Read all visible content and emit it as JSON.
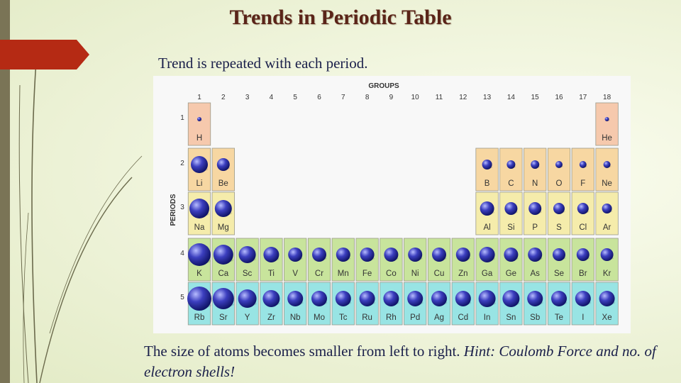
{
  "slide": {
    "title": "Trends in Periodic Table",
    "subtitle": "Trend is repeated with each period.",
    "caption_plain": "The size of atoms becomes smaller from left to right. ",
    "caption_italic": "Hint: Coulomb Force and no. of electron shells!"
  },
  "diagram": {
    "groups_label": "GROUPS",
    "periods_label": "PERIODS",
    "group_numbers": [
      "1",
      "2",
      "3",
      "4",
      "5",
      "6",
      "7",
      "8",
      "9",
      "10",
      "11",
      "12",
      "13",
      "14",
      "15",
      "16",
      "17",
      "18"
    ],
    "period_numbers": [
      "1",
      "2",
      "3",
      "4",
      "5"
    ],
    "colors": {
      "period_1": "#f6c9ad",
      "period_2": "#f7d7a2",
      "period_3": "#f5ecab",
      "period_4": "#c8e49c",
      "period_5": "#98e4e4",
      "cell_border": "#9a9a8a",
      "atom_light": "#b7bcff",
      "atom_mid": "#3c3fbf",
      "atom_dark": "#0f1366",
      "accent": "#b52a14"
    },
    "periods": [
      {
        "period": "1",
        "elements": [
          {
            "symbol": "H",
            "group": 1,
            "radius": 3
          },
          {
            "symbol": "He",
            "group": 18,
            "radius": 3
          }
        ]
      },
      {
        "period": "2",
        "elements": [
          {
            "symbol": "Li",
            "group": 1,
            "radius": 12
          },
          {
            "symbol": "Be",
            "group": 2,
            "radius": 9
          },
          {
            "symbol": "B",
            "group": 13,
            "radius": 7
          },
          {
            "symbol": "C",
            "group": 14,
            "radius": 6
          },
          {
            "symbol": "N",
            "group": 15,
            "radius": 6
          },
          {
            "symbol": "O",
            "group": 16,
            "radius": 5
          },
          {
            "symbol": "F",
            "group": 17,
            "radius": 5
          },
          {
            "symbol": "Ne",
            "group": 18,
            "radius": 5
          }
        ]
      },
      {
        "period": "3",
        "elements": [
          {
            "symbol": "Na",
            "group": 1,
            "radius": 14
          },
          {
            "symbol": "Mg",
            "group": 2,
            "radius": 12
          },
          {
            "symbol": "Al",
            "group": 13,
            "radius": 10
          },
          {
            "symbol": "Si",
            "group": 14,
            "radius": 9
          },
          {
            "symbol": "P",
            "group": 15,
            "radius": 9
          },
          {
            "symbol": "S",
            "group": 16,
            "radius": 8
          },
          {
            "symbol": "Cl",
            "group": 17,
            "radius": 8
          },
          {
            "symbol": "Ar",
            "group": 18,
            "radius": 7
          }
        ]
      },
      {
        "period": "4",
        "elements": [
          {
            "symbol": "K",
            "group": 1,
            "radius": 16
          },
          {
            "symbol": "Ca",
            "group": 2,
            "radius": 14
          },
          {
            "symbol": "Sc",
            "group": 3,
            "radius": 12
          },
          {
            "symbol": "Ti",
            "group": 4,
            "radius": 11
          },
          {
            "symbol": "V",
            "group": 5,
            "radius": 10
          },
          {
            "symbol": "Cr",
            "group": 6,
            "radius": 10
          },
          {
            "symbol": "Mn",
            "group": 7,
            "radius": 10
          },
          {
            "symbol": "Fe",
            "group": 8,
            "radius": 10
          },
          {
            "symbol": "Co",
            "group": 9,
            "radius": 10
          },
          {
            "symbol": "Ni",
            "group": 10,
            "radius": 10
          },
          {
            "symbol": "Cu",
            "group": 11,
            "radius": 10
          },
          {
            "symbol": "Zn",
            "group": 12,
            "radius": 10
          },
          {
            "symbol": "Ga",
            "group": 13,
            "radius": 11
          },
          {
            "symbol": "Ge",
            "group": 14,
            "radius": 10
          },
          {
            "symbol": "As",
            "group": 15,
            "radius": 10
          },
          {
            "symbol": "Se",
            "group": 16,
            "radius": 9
          },
          {
            "symbol": "Br",
            "group": 17,
            "radius": 9
          },
          {
            "symbol": "Kr",
            "group": 18,
            "radius": 9
          }
        ]
      },
      {
        "period": "5",
        "elements": [
          {
            "symbol": "Rb",
            "group": 1,
            "radius": 17
          },
          {
            "symbol": "Sr",
            "group": 2,
            "radius": 15
          },
          {
            "symbol": "Y",
            "group": 3,
            "radius": 13
          },
          {
            "symbol": "Zr",
            "group": 4,
            "radius": 12
          },
          {
            "symbol": "Nb",
            "group": 5,
            "radius": 11
          },
          {
            "symbol": "Mo",
            "group": 6,
            "radius": 11
          },
          {
            "symbol": "Tc",
            "group": 7,
            "radius": 11
          },
          {
            "symbol": "Ru",
            "group": 8,
            "radius": 11
          },
          {
            "symbol": "Rh",
            "group": 9,
            "radius": 11
          },
          {
            "symbol": "Pd",
            "group": 10,
            "radius": 11
          },
          {
            "symbol": "Ag",
            "group": 11,
            "radius": 11
          },
          {
            "symbol": "Cd",
            "group": 12,
            "radius": 11
          },
          {
            "symbol": "In",
            "group": 13,
            "radius": 12
          },
          {
            "symbol": "Sn",
            "group": 14,
            "radius": 12
          },
          {
            "symbol": "Sb",
            "group": 15,
            "radius": 11
          },
          {
            "symbol": "Te",
            "group": 16,
            "radius": 11
          },
          {
            "symbol": "I",
            "group": 17,
            "radius": 11
          },
          {
            "symbol": "Xe",
            "group": 18,
            "radius": 11
          }
        ]
      }
    ]
  }
}
